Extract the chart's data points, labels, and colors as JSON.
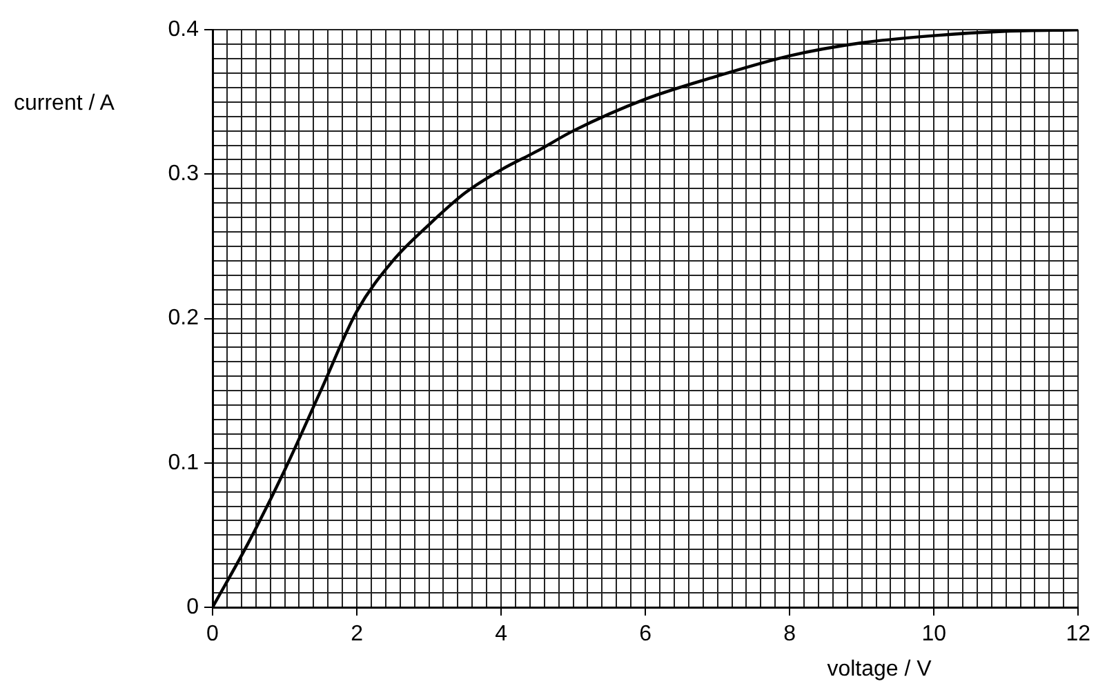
{
  "chart_data": {
    "type": "line",
    "xlabel": "voltage / V",
    "ylabel": "current / A",
    "x": [
      0,
      0.5,
      1,
      1.5,
      2,
      2.5,
      3,
      3.5,
      4,
      4.5,
      5,
      6,
      7,
      8,
      9,
      10,
      11,
      12
    ],
    "series": [
      {
        "color": "#000000",
        "values": [
          0,
          0.045,
          0.095,
          0.15,
          0.205,
          0.24,
          0.265,
          0.287,
          0.303,
          0.316,
          0.33,
          0.352,
          0.368,
          0.382,
          0.391,
          0.396,
          0.399,
          0.4
        ]
      }
    ],
    "xlim": [
      0,
      12
    ],
    "xticks": [
      0,
      {
        "value": 0.2,
        "label": null
      },
      {
        "value": 0.4,
        "label": null
      },
      {
        "value": 0.6,
        "label": null
      },
      {
        "value": 0.8,
        "label": null
      },
      {
        "value": 1,
        "label": null
      },
      {
        "value": 1.2,
        "label": null
      },
      {
        "value": 1.4,
        "label": null
      },
      {
        "value": 1.6,
        "label": null
      },
      {
        "value": 1.8,
        "label": null
      },
      2,
      {
        "value": 2.2,
        "label": null
      },
      {
        "value": 2.4,
        "label": null
      },
      {
        "value": 2.6,
        "label": null
      },
      {
        "value": 2.8,
        "label": null
      },
      {
        "value": 3,
        "label": null
      },
      {
        "value": 3.2,
        "label": null
      },
      {
        "value": 3.4,
        "label": null
      },
      {
        "value": 3.6,
        "label": null
      },
      {
        "value": 3.8,
        "label": null
      },
      4,
      {
        "value": 4.2,
        "label": null
      },
      {
        "value": 4.4,
        "label": null
      },
      {
        "value": 4.6,
        "label": null
      },
      {
        "value": 4.8,
        "label": null
      },
      {
        "value": 5,
        "label": null
      },
      {
        "value": 5.2,
        "label": null
      },
      {
        "value": 5.4,
        "label": null
      },
      {
        "value": 5.6,
        "label": null
      },
      {
        "value": 5.8,
        "label": null
      },
      6,
      {
        "value": 6.2,
        "label": null
      },
      {
        "value": 6.4,
        "label": null
      },
      {
        "value": 6.6,
        "label": null
      },
      {
        "value": 6.8,
        "label": null
      },
      {
        "value": 7,
        "label": null
      },
      {
        "value": 7.2,
        "label": null
      },
      {
        "value": 7.4,
        "label": null
      },
      {
        "value": 7.6,
        "label": null
      },
      {
        "value": 7.8,
        "label": null
      },
      8,
      {
        "value": 8.2,
        "label": null
      },
      {
        "value": 8.4,
        "label": null
      },
      {
        "value": 8.6,
        "label": null
      },
      {
        "value": 8.8,
        "label": null
      },
      {
        "value": 9,
        "label": null
      },
      {
        "value": 9.2,
        "label": null
      },
      {
        "value": 9.4,
        "label": null
      },
      {
        "value": 9.6,
        "label": null
      },
      {
        "value": 9.8,
        "label": null
      },
      10,
      {
        "value": 10.2,
        "label": null
      },
      {
        "value": 10.4,
        "label": null
      },
      {
        "value": 10.6,
        "label": null
      },
      {
        "value": 10.8,
        "label": null
      },
      {
        "value": 11,
        "label": null
      },
      {
        "value": 11.2,
        "label": null
      },
      {
        "value": 11.4,
        "label": null
      },
      {
        "value": 11.6,
        "label": null
      },
      {
        "value": 11.8,
        "label": null
      },
      12
    ],
    "ylim": [
      0,
      0.4
    ],
    "yticks": [
      0,
      {
        "value": 0.01,
        "label": null
      },
      {
        "value": 0.02,
        "label": null
      },
      {
        "value": 0.03,
        "label": null
      },
      {
        "value": 0.04,
        "label": null
      },
      {
        "value": 0.05,
        "label": null
      },
      {
        "value": 0.06,
        "label": null
      },
      {
        "value": 0.07,
        "label": null
      },
      {
        "value": 0.08,
        "label": null
      },
      {
        "value": 0.09,
        "label": null
      },
      0.1,
      {
        "value": 0.11,
        "label": null
      },
      {
        "value": 0.12,
        "label": null
      },
      {
        "value": 0.13,
        "label": null
      },
      {
        "value": 0.14,
        "label": null
      },
      {
        "value": 0.15,
        "label": null
      },
      {
        "value": 0.16,
        "label": null
      },
      {
        "value": 0.17,
        "label": null
      },
      {
        "value": 0.18,
        "label": null
      },
      {
        "value": 0.19,
        "label": null
      },
      0.2,
      {
        "value": 0.21,
        "label": null
      },
      {
        "value": 0.22,
        "label": null
      },
      {
        "value": 0.23,
        "label": null
      },
      {
        "value": 0.24,
        "label": null
      },
      {
        "value": 0.25,
        "label": null
      },
      {
        "value": 0.26,
        "label": null
      },
      {
        "value": 0.27,
        "label": null
      },
      {
        "value": 0.28,
        "label": null
      },
      {
        "value": 0.29,
        "label": null
      },
      0.3,
      {
        "value": 0.31,
        "label": null
      },
      {
        "value": 0.32,
        "label": null
      },
      {
        "value": 0.33,
        "label": null
      },
      {
        "value": 0.34,
        "label": null
      },
      {
        "value": 0.35,
        "label": null
      },
      {
        "value": 0.36,
        "label": null
      },
      {
        "value": 0.37,
        "label": null
      },
      {
        "value": 0.38,
        "label": null
      },
      {
        "value": 0.39,
        "label": null
      },
      0.4
    ],
    "grid": true,
    "legend": false,
    "marker": "none",
    "line_style": "solid"
  }
}
